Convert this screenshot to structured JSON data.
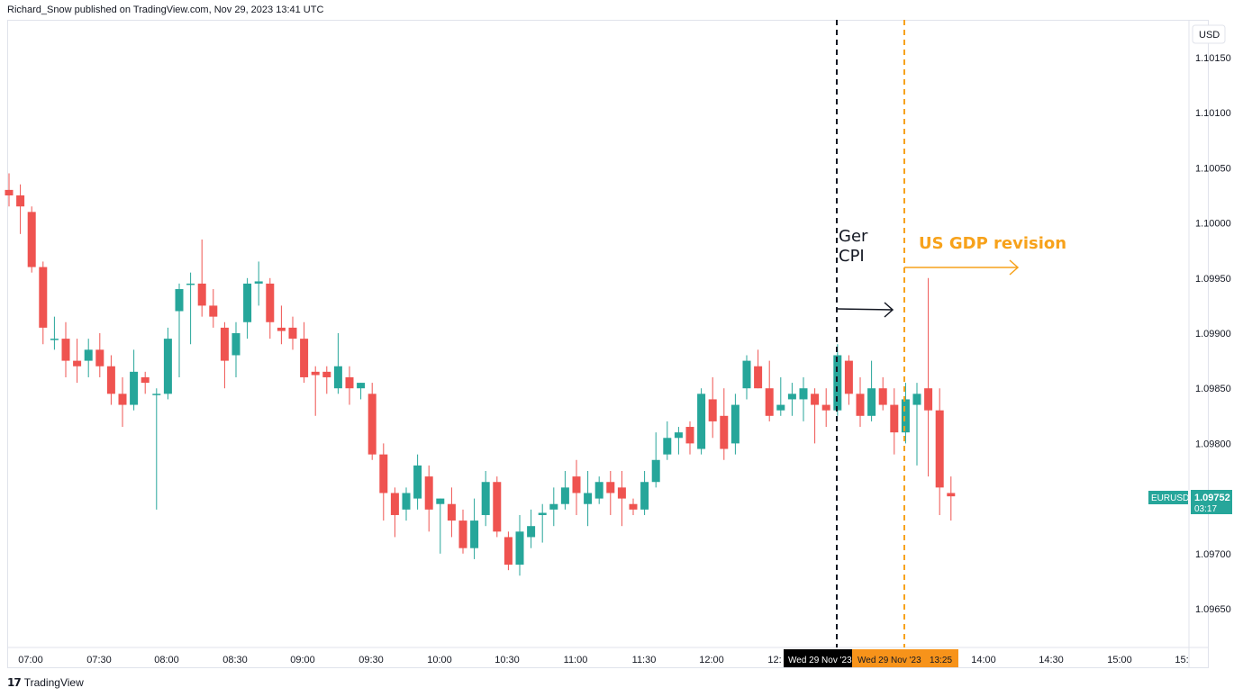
{
  "header": {
    "published": "Richard_Snow published on TradingView.com, Nov 29, 2023 13:41 UTC"
  },
  "footer": {
    "brand": "TradingView",
    "logo_icon": "tradingview-logo-icon"
  },
  "colors": {
    "up": "#26a69a",
    "down": "#ef5350",
    "ger_line": "#131722",
    "gdp_line": "#f7a21b",
    "gdp_label_bg": "#f7931a",
    "ger_label_bg": "#000000"
  },
  "price_axis": {
    "currency": "USD",
    "ticks": [
      "1.10150",
      "1.10100",
      "1.10050",
      "1.10000",
      "1.09950",
      "1.09900",
      "1.09850",
      "1.09800",
      "1.09750",
      "1.09700",
      "1.09650"
    ],
    "symbol_tag": "EURUSD",
    "last_price": "1.09752",
    "countdown": "03:17"
  },
  "time_axis": {
    "ticks": [
      "07:00",
      "07:30",
      "08:00",
      "08:30",
      "09:00",
      "09:30",
      "10:00",
      "10:30",
      "11:00",
      "11:30",
      "12:00",
      "12:",
      "14:00",
      "14:30",
      "15:00",
      "15:"
    ],
    "ger_marker": "Wed 29 Nov '23",
    "gdp_marker": "Wed 29 Nov '23",
    "gdp_time": "13:25"
  },
  "annotations": {
    "ger_cpi_line1": "Ger",
    "ger_cpi_line2": "CPI",
    "us_gdp": "US GDP revision"
  },
  "chart_data": {
    "type": "candlestick",
    "symbol": "EURUSD",
    "interval": "5m",
    "ylim": [
      1.09625,
      1.10185
    ],
    "start_time": "06:55",
    "candles": [
      [
        1.1003,
        1.10045,
        1.10015,
        1.10025
      ],
      [
        1.10025,
        1.10035,
        1.0999,
        1.10015
      ],
      [
        1.1001,
        1.10015,
        1.09955,
        1.0996
      ],
      [
        1.0996,
        1.09965,
        1.0989,
        1.09905
      ],
      [
        1.09895,
        1.09915,
        1.09885,
        1.09895
      ],
      [
        1.09895,
        1.0991,
        1.0986,
        1.09875
      ],
      [
        1.09875,
        1.09895,
        1.09855,
        1.0987
      ],
      [
        1.09875,
        1.09895,
        1.0986,
        1.09885
      ],
      [
        1.09885,
        1.099,
        1.0986,
        1.0987
      ],
      [
        1.0987,
        1.0988,
        1.09835,
        1.09845
      ],
      [
        1.09845,
        1.0986,
        1.09815,
        1.09835
      ],
      [
        1.09835,
        1.09885,
        1.0983,
        1.09865
      ],
      [
        1.0986,
        1.09865,
        1.09845,
        1.09855
      ],
      [
        1.09845,
        1.0985,
        1.0974,
        1.09845
      ],
      [
        1.09845,
        1.09905,
        1.0984,
        1.09895
      ],
      [
        1.0992,
        1.09945,
        1.0986,
        1.0994
      ],
      [
        1.09945,
        1.09955,
        1.0989,
        1.09945
      ],
      [
        1.09945,
        1.09985,
        1.09915,
        1.09925
      ],
      [
        1.09925,
        1.0994,
        1.09905,
        1.09915
      ],
      [
        1.09905,
        1.0991,
        1.0985,
        1.09875
      ],
      [
        1.0988,
        1.0991,
        1.0986,
        1.099
      ],
      [
        1.0991,
        1.0995,
        1.09895,
        1.09945
      ],
      [
        1.09945,
        1.09965,
        1.09925,
        1.09947
      ],
      [
        1.09945,
        1.0995,
        1.09895,
        1.0991
      ],
      [
        1.09905,
        1.09925,
        1.0989,
        1.09902
      ],
      [
        1.09905,
        1.09915,
        1.09885,
        1.09895
      ],
      [
        1.09895,
        1.0991,
        1.09855,
        1.0986
      ],
      [
        1.09865,
        1.0987,
        1.09825,
        1.09862
      ],
      [
        1.09865,
        1.0987,
        1.09845,
        1.0986
      ],
      [
        1.0985,
        1.099,
        1.09845,
        1.0987
      ],
      [
        1.0986,
        1.0987,
        1.09835,
        1.0985
      ],
      [
        1.0985,
        1.09855,
        1.0984,
        1.09855
      ],
      [
        1.09845,
        1.09855,
        1.09785,
        1.0979
      ],
      [
        1.0979,
        1.098,
        1.0973,
        1.09755
      ],
      [
        1.09755,
        1.0976,
        1.09715,
        1.09735
      ],
      [
        1.0974,
        1.0976,
        1.0973,
        1.09755
      ],
      [
        1.0975,
        1.0979,
        1.0974,
        1.0978
      ],
      [
        1.0977,
        1.0978,
        1.0972,
        1.0974
      ],
      [
        1.09745,
        1.0975,
        1.097,
        1.0975
      ],
      [
        1.09745,
        1.0976,
        1.09715,
        1.0973
      ],
      [
        1.0973,
        1.0974,
        1.097,
        1.09705
      ],
      [
        1.09705,
        1.0975,
        1.09695,
        1.0973
      ],
      [
        1.09735,
        1.09775,
        1.09725,
        1.09765
      ],
      [
        1.09765,
        1.0977,
        1.09715,
        1.0972
      ],
      [
        1.09715,
        1.0972,
        1.09685,
        1.0969
      ],
      [
        1.0969,
        1.09735,
        1.0968,
        1.0972
      ],
      [
        1.09715,
        1.0974,
        1.09705,
        1.09725
      ],
      [
        1.09735,
        1.09745,
        1.0971,
        1.09737
      ],
      [
        1.0974,
        1.0976,
        1.09725,
        1.09745
      ],
      [
        1.09745,
        1.09775,
        1.0974,
        1.0976
      ],
      [
        1.0977,
        1.09785,
        1.09735,
        1.09755
      ],
      [
        1.09745,
        1.09775,
        1.09725,
        1.09755
      ],
      [
        1.0975,
        1.0977,
        1.09745,
        1.09765
      ],
      [
        1.09765,
        1.09775,
        1.09735,
        1.09755
      ],
      [
        1.0976,
        1.09775,
        1.09725,
        1.0975
      ],
      [
        1.09745,
        1.0975,
        1.09735,
        1.0974
      ],
      [
        1.0974,
        1.09775,
        1.09735,
        1.09765
      ],
      [
        1.09765,
        1.0981,
        1.0976,
        1.09785
      ],
      [
        1.0979,
        1.0982,
        1.09785,
        1.09805
      ],
      [
        1.09805,
        1.09815,
        1.0979,
        1.0981
      ],
      [
        1.09815,
        1.0982,
        1.0979,
        1.098
      ],
      [
        1.09795,
        1.0985,
        1.0979,
        1.09845
      ],
      [
        1.0984,
        1.0986,
        1.09805,
        1.0982
      ],
      [
        1.09825,
        1.0985,
        1.09785,
        1.09795
      ],
      [
        1.098,
        1.09845,
        1.0979,
        1.09835
      ],
      [
        1.0985,
        1.0988,
        1.0984,
        1.09875
      ],
      [
        1.0987,
        1.09885,
        1.0985,
        1.0985
      ],
      [
        1.0985,
        1.09875,
        1.0982,
        1.09825
      ],
      [
        1.0983,
        1.0986,
        1.09825,
        1.09835
      ],
      [
        1.0984,
        1.09855,
        1.09825,
        1.09845
      ],
      [
        1.0984,
        1.0986,
        1.0982,
        1.0985
      ],
      [
        1.09845,
        1.0985,
        1.098,
        1.09835
      ],
      [
        1.09835,
        1.0985,
        1.09815,
        1.0983
      ],
      [
        1.0983,
        1.0989,
        1.09825,
        1.0988
      ]
    ],
    "post_candles": [
      [
        1.09875,
        1.0988,
        1.09835,
        1.09845
      ],
      [
        1.09845,
        1.0986,
        1.09815,
        1.09825
      ],
      [
        1.09825,
        1.09875,
        1.0982,
        1.0985
      ],
      [
        1.0985,
        1.0986,
        1.0983,
        1.09835
      ],
      [
        1.09835,
        1.0985,
        1.0979,
        1.0981
      ],
      [
        1.0981,
        1.09855,
        1.098,
        1.0984
      ],
      [
        1.09835,
        1.09855,
        1.0978,
        1.09845
      ],
      [
        1.0985,
        1.0995,
        1.0977,
        1.0983
      ],
      [
        1.0983,
        1.0985,
        1.09735,
        1.0976
      ],
      [
        1.09755,
        1.0977,
        1.0973,
        1.09752
      ]
    ],
    "events": [
      {
        "name": "Ger CPI",
        "time": "13:00"
      },
      {
        "name": "US GDP revision",
        "time": "13:30"
      }
    ]
  }
}
